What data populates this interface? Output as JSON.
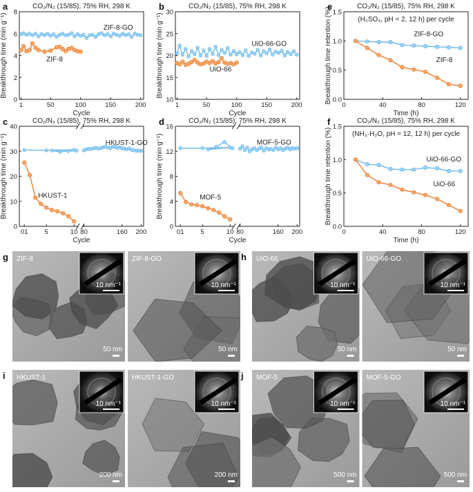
{
  "panel_letters": {
    "a": "a",
    "b": "b",
    "c": "c",
    "d": "d",
    "e": "e",
    "f": "f",
    "g": "g",
    "h": "h",
    "i": "i",
    "j": "j"
  },
  "colors": {
    "blue": "#6ab7ea",
    "blue_marker": "#9cd3f5",
    "orange": "#ed7d31",
    "orange_marker": "#f4a868",
    "axis": "#222222"
  },
  "chart_data": [
    {
      "id": "a",
      "type": "line",
      "title": "CO₂/N₂ (15/85), 75% RH, 298 K",
      "xlabel": "Cycle",
      "ylabel": "Breakthrough time (min g⁻¹)",
      "xlim": [
        -2,
        205
      ],
      "ylim": [
        0,
        8
      ],
      "xticks": [
        1,
        50,
        100,
        150,
        200
      ],
      "yticks": [
        0,
        2,
        4,
        6,
        8
      ],
      "series": [
        {
          "name": "ZIF-8-GO",
          "color": "blue",
          "label_pos": [
            138,
            6.35
          ],
          "x": [
            1,
            5,
            10,
            15,
            20,
            25,
            30,
            35,
            40,
            45,
            50,
            55,
            60,
            65,
            70,
            75,
            80,
            85,
            90,
            95,
            100,
            105,
            110,
            115,
            120,
            125,
            130,
            135,
            140,
            145,
            150,
            155,
            160,
            165,
            170,
            175,
            180,
            185,
            190,
            195,
            200
          ],
          "y": [
            5.95,
            6.05,
            5.9,
            6.0,
            5.85,
            6.0,
            5.75,
            5.95,
            5.85,
            6.0,
            5.8,
            5.95,
            5.7,
            5.9,
            6.0,
            5.85,
            5.9,
            6.05,
            5.75,
            5.95,
            5.8,
            5.9,
            5.6,
            5.85,
            5.9,
            5.7,
            5.95,
            6.05,
            5.85,
            5.95,
            5.75,
            6.0,
            5.9,
            5.8,
            6.0,
            5.85,
            5.95,
            5.7,
            6.0,
            5.9,
            5.85
          ]
        },
        {
          "name": "ZIF-8",
          "color": "orange",
          "label_pos": [
            43,
            3.45
          ],
          "x": [
            1,
            5,
            10,
            15,
            20,
            25,
            30,
            40,
            50,
            60,
            65,
            70,
            75,
            80,
            85,
            90,
            95,
            100
          ],
          "y": [
            4.5,
            4.85,
            4.4,
            4.5,
            5.1,
            4.7,
            4.5,
            4.35,
            4.45,
            4.75,
            4.8,
            4.6,
            4.4,
            4.6,
            4.7,
            4.5,
            4.4,
            4.35
          ]
        }
      ]
    },
    {
      "id": "b",
      "type": "line",
      "title": "CO₂/N₂ (15/85), 75% RH, 298 K",
      "xlabel": "Cycle",
      "ylabel": "Breakthrough time (min g⁻¹)",
      "xlim": [
        -2,
        205
      ],
      "ylim": [
        10,
        30
      ],
      "xticks": [
        1,
        50,
        100,
        150,
        200
      ],
      "yticks": [
        10,
        15,
        20,
        25,
        30
      ],
      "series": [
        {
          "name": "UiO-66-GO",
          "color": "blue",
          "label_pos": [
            125,
            22.2
          ],
          "x": [
            1,
            5,
            10,
            15,
            20,
            25,
            30,
            35,
            40,
            45,
            50,
            55,
            60,
            65,
            70,
            75,
            80,
            85,
            90,
            95,
            100,
            105,
            110,
            115,
            120,
            125,
            130,
            135,
            140,
            145,
            150,
            155,
            160,
            165,
            170,
            175,
            180,
            185,
            190,
            195,
            200
          ],
          "y": [
            20.5,
            22.3,
            20.2,
            21.5,
            19.8,
            21.0,
            20.3,
            21.8,
            20.0,
            21.2,
            19.9,
            21.5,
            20.4,
            22.0,
            20.1,
            21.3,
            20.6,
            21.7,
            20.2,
            21.0,
            20.3,
            20.8,
            20.1,
            21.2,
            19.9,
            20.7,
            20.4,
            21.3,
            20.0,
            21.0,
            20.5,
            21.4,
            20.2,
            20.9,
            20.6,
            21.1,
            20.0,
            20.8,
            20.3,
            21.0,
            20.2
          ]
        },
        {
          "name": "UiO-66",
          "color": "orange",
          "label_pos": [
            55,
            16.4
          ],
          "x": [
            1,
            5,
            10,
            15,
            20,
            25,
            30,
            35,
            40,
            45,
            50,
            55,
            60,
            65,
            70,
            75,
            80,
            85,
            90,
            95,
            100
          ],
          "y": [
            18.3,
            18.0,
            18.6,
            17.9,
            18.1,
            18.5,
            19.0,
            18.4,
            18.0,
            18.2,
            18.6,
            18.3,
            18.7,
            18.2,
            18.5,
            19.4,
            18.4,
            18.1,
            18.3,
            18.0,
            18.4
          ]
        }
      ]
    },
    {
      "id": "c",
      "type": "line",
      "title": "CO₂/N₂ (15/85), 75% RH, 298 K",
      "xlabel": "Cycle",
      "ylabel": "Breakthrough time (min g⁻¹)",
      "ylim": [
        0,
        40
      ],
      "yticks": [
        0,
        10,
        20,
        30,
        40
      ],
      "xticks": [
        "01",
        "5",
        "10",
        "80",
        "160",
        "200"
      ],
      "series": [
        {
          "name": "HKUST-1-GO",
          "color": "blue",
          "label_pos": [
            125,
            32.5
          ],
          "x": [
            1,
            5,
            10,
            15,
            20,
            25,
            30,
            80,
            85,
            90,
            95,
            100,
            105,
            110,
            115,
            120,
            125,
            130,
            135,
            140,
            145,
            150,
            155,
            160,
            165,
            170,
            175,
            180,
            185,
            190,
            195,
            200
          ],
          "y": [
            30.5,
            30.4,
            30.6,
            30.3,
            29.8,
            30.1,
            30.2,
            30.4,
            30.8,
            31.0,
            30.9,
            31.2,
            31.4,
            31.1,
            31.3,
            31.6,
            31.8,
            31.5,
            31.2,
            31.7,
            31.9,
            31.4,
            31.6,
            31.2,
            31.0,
            30.8,
            31.1,
            30.6,
            30.4,
            30.2,
            30.3,
            30.2
          ]
        },
        {
          "name": "HKUST-1",
          "color": "orange",
          "label_pos": [
            3.5,
            11.5
          ],
          "x": [
            1,
            2,
            3,
            4,
            5,
            6,
            7,
            8,
            9,
            10
          ],
          "y": [
            25.5,
            20.5,
            11.5,
            9.0,
            7.5,
            6.5,
            6.0,
            5.2,
            4.0,
            2.0
          ]
        }
      ]
    },
    {
      "id": "d",
      "type": "line",
      "title": "CO₂/N₂ (15/85), 75% RH, 298 K",
      "xlabel": "Cycle",
      "ylabel": "Breakthrough time (min g⁻¹)",
      "ylim": [
        0,
        16
      ],
      "yticks": [
        0,
        4,
        8,
        12,
        16
      ],
      "xticks": [
        "01",
        "5",
        "10",
        "80",
        "160",
        "200"
      ],
      "series": [
        {
          "name": "MOF-5-GO",
          "color": "blue",
          "label_pos": [
            115,
            13.1
          ],
          "x": [
            1,
            5,
            10,
            15,
            20,
            25,
            30,
            80,
            85,
            90,
            95,
            100,
            105,
            110,
            115,
            120,
            125,
            130,
            135,
            140,
            145,
            150,
            155,
            160,
            165,
            170,
            175,
            180,
            185,
            190,
            195,
            200
          ],
          "y": [
            12.5,
            12.5,
            12.6,
            12.3,
            12.7,
            13.5,
            12.5,
            12.4,
            12.8,
            12.2,
            12.6,
            12.0,
            12.3,
            12.5,
            12.2,
            12.4,
            12.6,
            12.1,
            12.5,
            12.3,
            12.4,
            12.2,
            12.6,
            12.3,
            12.5,
            12.2,
            12.4,
            12.6,
            12.3,
            12.5,
            12.4,
            12.5
          ]
        },
        {
          "name": "MOF-5",
          "color": "orange",
          "label_pos": [
            4.5,
            4.3
          ],
          "x": [
            1,
            2,
            3,
            4,
            5,
            6,
            7,
            8,
            9,
            10
          ],
          "y": [
            5.3,
            3.9,
            3.5,
            3.4,
            3.2,
            2.9,
            2.6,
            2.2,
            1.6,
            1.1
          ]
        }
      ]
    },
    {
      "id": "e",
      "type": "line",
      "title": "CO₂/N₂ (15/85), 75% RH, 298 K",
      "annotation": "(H₂SO₄, pH = 2, 12 h) per cycle",
      "xlabel": "Time (h)",
      "ylabel": "Breakthrough time retention (%)",
      "xlim": [
        0,
        128
      ],
      "ylim": [
        0,
        1.5
      ],
      "xticks": [
        0,
        40,
        80,
        120
      ],
      "yticks": [
        0.0,
        0.5,
        1.0,
        1.5
      ],
      "series": [
        {
          "name": "ZIF-8-GO",
          "color": "blue",
          "label_pos": [
            72,
            1.08
          ],
          "x": [
            12,
            24,
            36,
            48,
            60,
            72,
            84,
            96,
            108,
            120
          ],
          "y": [
            1.0,
            0.99,
            0.98,
            0.98,
            0.93,
            0.92,
            0.91,
            0.9,
            0.89,
            0.88
          ]
        },
        {
          "name": "ZIF-8",
          "color": "orange",
          "label_pos": [
            95,
            0.64
          ],
          "x": [
            12,
            24,
            36,
            48,
            60,
            72,
            84,
            96,
            108,
            120
          ],
          "y": [
            1.0,
            0.88,
            0.76,
            0.67,
            0.55,
            0.51,
            0.47,
            0.37,
            0.26,
            0.23
          ]
        }
      ]
    },
    {
      "id": "f",
      "type": "line",
      "title": "CO₂/N₂ (15/85), 75% RH, 298 K",
      "annotation": "(NH₃·H₂O, pH = 12, 12 h) per cycle",
      "xlabel": "Time (h)",
      "ylabel": "Breakthrough time retention (%)",
      "xlim": [
        0,
        128
      ],
      "ylim": [
        0,
        1.5
      ],
      "xticks": [
        0,
        40,
        80,
        120
      ],
      "yticks": [
        0.0,
        0.5,
        1.0,
        1.5
      ],
      "series": [
        {
          "name": "UiO-66-GO",
          "color": "blue",
          "label_pos": [
            85,
            0.97
          ],
          "x": [
            12,
            24,
            36,
            48,
            60,
            72,
            84,
            96,
            108,
            120
          ],
          "y": [
            1.0,
            0.93,
            0.92,
            0.86,
            0.85,
            0.85,
            0.88,
            0.87,
            0.83,
            0.83
          ]
        },
        {
          "name": "UiO-66",
          "color": "orange",
          "label_pos": [
            92,
            0.6
          ],
          "x": [
            12,
            24,
            36,
            48,
            60,
            72,
            84,
            96,
            108,
            120
          ],
          "y": [
            1.0,
            0.77,
            0.66,
            0.62,
            0.55,
            0.51,
            0.47,
            0.41,
            0.32,
            0.23
          ]
        }
      ]
    }
  ],
  "tem_images": [
    {
      "panel": "g",
      "left_label": "ZIF-8",
      "right_label": "ZIF-8-GO",
      "scale_left": "50 nm",
      "scale_right": "50 nm",
      "saed_left": "10 nm⁻¹",
      "saed_right": "10 nm⁻¹"
    },
    {
      "panel": "h",
      "left_label": "UiO-66",
      "right_label": "UiO-66-GO",
      "scale_left": "50 nm",
      "scale_right": "50 nm",
      "saed_left": "10 nm⁻¹",
      "saed_right": "10 nm⁻¹"
    },
    {
      "panel": "i",
      "left_label": "HKUST-1",
      "right_label": "HKUST-1-GO",
      "scale_left": "200 nm",
      "scale_right": "200 nm",
      "saed_left": "10 nm⁻¹",
      "saed_right": "10 nm⁻¹"
    },
    {
      "panel": "j",
      "left_label": "MOF-5",
      "right_label": "MOF-5-GO",
      "scale_left": "500 nm",
      "scale_right": "500 nm",
      "saed_left": "10 nm⁻¹",
      "saed_right": "10 nm⁻¹"
    }
  ]
}
